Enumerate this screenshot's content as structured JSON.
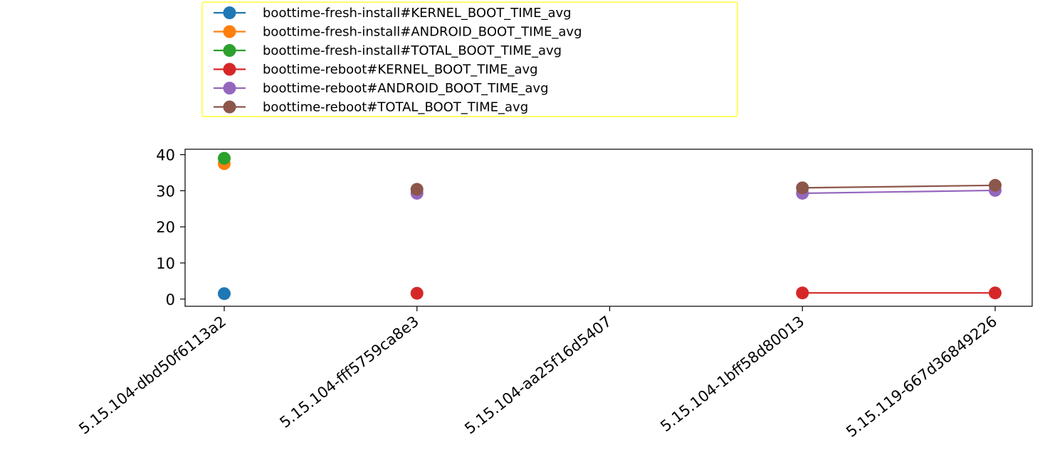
{
  "chart_data": {
    "type": "line",
    "title": "",
    "xlabel": "",
    "ylabel": "",
    "categories": [
      "5.15.104-dbd50f6113a2",
      "5.15.104-fff5759ca8e3",
      "5.15.104-aa25f16d5407",
      "5.15.104-1bff58d80013",
      "5.15.119-667d36849226"
    ],
    "ylim": [
      -2,
      41.5
    ],
    "yticks": [
      0,
      10,
      20,
      30,
      40
    ],
    "grid": false,
    "legend_position": "top-left, above axes",
    "series": [
      {
        "name": "boottime-fresh-install#KERNEL_BOOT_TIME_avg",
        "color": "#1f77b4",
        "values": [
          1.5,
          null,
          null,
          null,
          null
        ]
      },
      {
        "name": "boottime-fresh-install#ANDROID_BOOT_TIME_avg",
        "color": "#ff7f0e",
        "values": [
          37.5,
          null,
          null,
          null,
          null
        ]
      },
      {
        "name": "boottime-fresh-install#TOTAL_BOOT_TIME_avg",
        "color": "#2ca02c",
        "values": [
          39.0,
          null,
          null,
          null,
          null
        ]
      },
      {
        "name": "boottime-reboot#KERNEL_BOOT_TIME_avg",
        "color": "#d62728",
        "values": [
          null,
          1.6,
          null,
          1.7,
          1.7
        ]
      },
      {
        "name": "boottime-reboot#ANDROID_BOOT_TIME_avg",
        "color": "#9467bd",
        "values": [
          null,
          29.3,
          null,
          29.3,
          30.1
        ]
      },
      {
        "name": "boottime-reboot#TOTAL_BOOT_TIME_avg",
        "color": "#8c564b",
        "values": [
          null,
          30.4,
          null,
          30.8,
          31.5
        ]
      }
    ]
  }
}
